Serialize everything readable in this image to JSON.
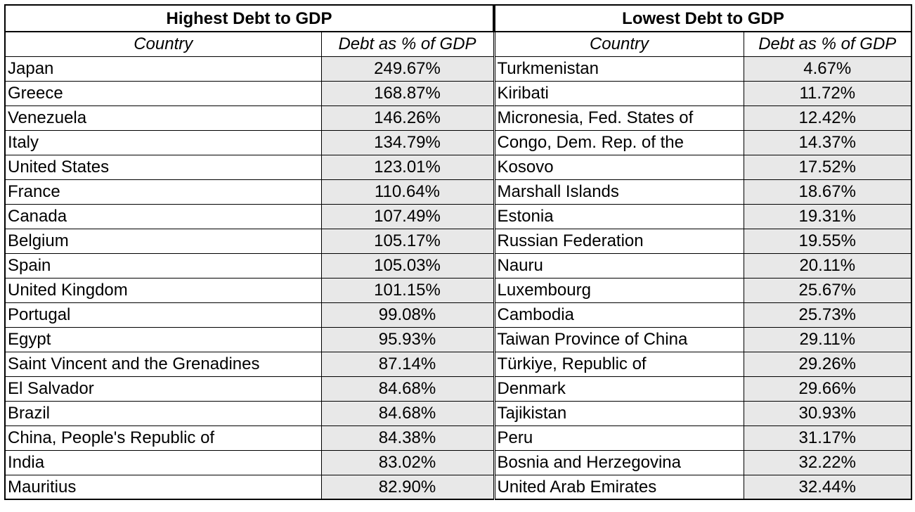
{
  "chart_data": {
    "type": "table",
    "tables": [
      {
        "title": "Highest Debt to GDP",
        "columns": [
          "Country",
          "Debt as % of GDP"
        ],
        "rows": [
          [
            "Japan",
            "249.67%"
          ],
          [
            "Greece",
            "168.87%"
          ],
          [
            "Venezuela",
            "146.26%"
          ],
          [
            "Italy",
            "134.79%"
          ],
          [
            "United States",
            "123.01%"
          ],
          [
            "France",
            "110.64%"
          ],
          [
            "Canada",
            "107.49%"
          ],
          [
            "Belgium",
            "105.17%"
          ],
          [
            "Spain",
            "105.03%"
          ],
          [
            "United Kingdom",
            "101.15%"
          ],
          [
            "Portugal",
            "99.08%"
          ],
          [
            "Egypt",
            "95.93%"
          ],
          [
            "Saint Vincent and the Grenadines",
            "87.14%"
          ],
          [
            "El Salvador",
            "84.68%"
          ],
          [
            "Brazil",
            "84.68%"
          ],
          [
            "China, People's Republic of",
            "84.38%"
          ],
          [
            "India",
            "83.02%"
          ],
          [
            "Mauritius",
            "82.90%"
          ]
        ]
      },
      {
        "title": "Lowest Debt to GDP",
        "columns": [
          "Country",
          "Debt as % of GDP"
        ],
        "rows": [
          [
            "Turkmenistan",
            "4.67%"
          ],
          [
            "Kiribati",
            "11.72%"
          ],
          [
            "Micronesia, Fed. States of",
            "12.42%"
          ],
          [
            "Congo, Dem. Rep. of the",
            "14.37%"
          ],
          [
            "Kosovo",
            "17.52%"
          ],
          [
            "Marshall Islands",
            "18.67%"
          ],
          [
            "Estonia",
            "19.31%"
          ],
          [
            "Russian Federation",
            "19.55%"
          ],
          [
            "Nauru",
            "20.11%"
          ],
          [
            "Luxembourg",
            "25.67%"
          ],
          [
            "Cambodia",
            "25.73%"
          ],
          [
            "Taiwan Province of China",
            "29.11%"
          ],
          [
            "Türkiye, Republic of",
            "29.26%"
          ],
          [
            "Denmark",
            "29.66%"
          ],
          [
            "Tajikistan",
            "30.93%"
          ],
          [
            "Peru",
            "31.17%"
          ],
          [
            "Bosnia and Herzegovina",
            "32.22%"
          ],
          [
            "United Arab Emirates",
            "32.44%"
          ]
        ]
      }
    ],
    "colors": {
      "value_cell_background": "#e8e8e8",
      "border": "#000000"
    }
  }
}
